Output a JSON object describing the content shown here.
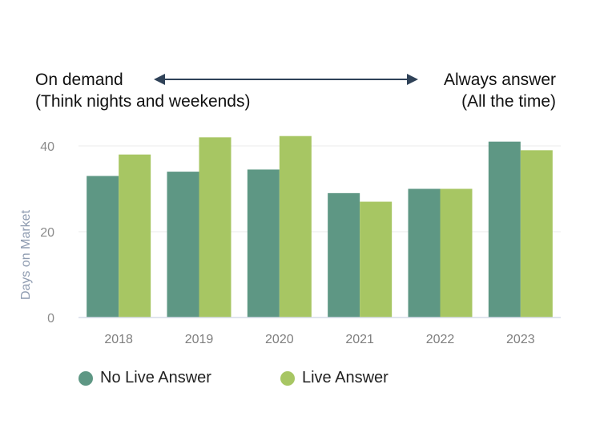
{
  "annotations": {
    "left_line1": "On demand",
    "left_line2": "(Think nights and weekends)",
    "right_line1": "Always answer",
    "right_line2": "(All the time)",
    "arrow_color": "#2f4258"
  },
  "chart_data": {
    "type": "bar",
    "categories": [
      "2018",
      "2019",
      "2020",
      "2021",
      "2022",
      "2023"
    ],
    "series": [
      {
        "name": "No Live Answer",
        "color": "#5e9784",
        "values": [
          33,
          34,
          34.5,
          29,
          30,
          41
        ]
      },
      {
        "name": "Live Answer",
        "color": "#a7c663",
        "values": [
          38,
          42,
          42.3,
          27,
          30,
          39
        ]
      }
    ],
    "ylabel": "Days on Market",
    "xlabel": "",
    "ylim": [
      0,
      43
    ],
    "yticks": [
      0,
      20,
      40
    ],
    "grid": true,
    "legend": "bottom"
  }
}
